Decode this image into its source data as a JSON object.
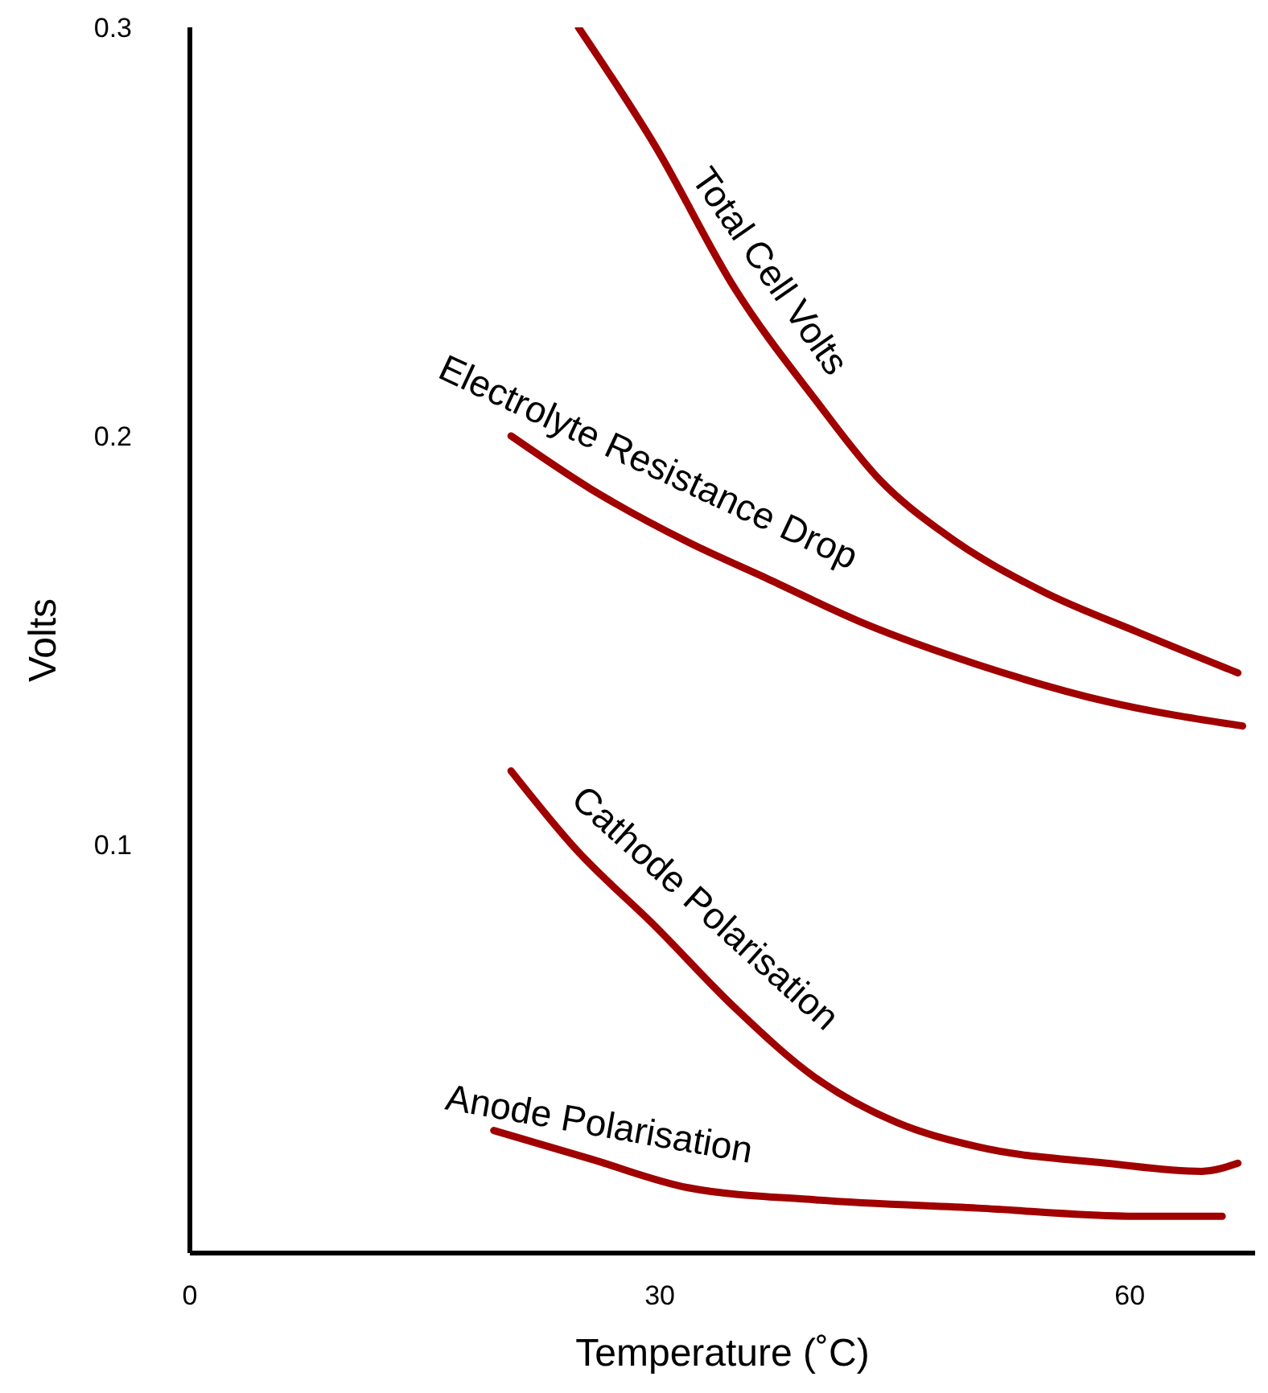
{
  "chart_data": {
    "type": "line",
    "xlabel": "Temperature  (˚C)",
    "ylabel": "Volts",
    "xlim": [
      0,
      68
    ],
    "xticks": [
      0,
      30,
      60
    ],
    "ylim": [
      0,
      0.3
    ],
    "yticks": [
      0.1,
      0.2,
      0.3
    ],
    "grid": false,
    "legend": false,
    "marker": "none",
    "line_style": "solid",
    "series": [
      {
        "name": "Total Cell Volts",
        "color": "#a00000",
        "x": [
          24.8,
          29.7,
          34.8,
          39.9,
          44.1,
          48.2,
          54.4,
          60.5,
          66.9
        ],
        "values": [
          0.3,
          0.271,
          0.236,
          0.209,
          0.189,
          0.176,
          0.162,
          0.152,
          0.142
        ]
      },
      {
        "name": "Electrolyte Resistance Drop",
        "color": "#a00000",
        "x": [
          20.5,
          25.6,
          31.8,
          36.9,
          43.1,
          50.3,
          58.5,
          67.2
        ],
        "values": [
          0.2,
          0.187,
          0.174,
          0.165,
          0.154,
          0.144,
          0.135,
          0.129
        ]
      },
      {
        "name": "Cathode Polarisation",
        "color": "#a00000",
        "x": [
          20.5,
          24.6,
          29.7,
          34.8,
          39.9,
          45.1,
          50.3,
          58.5,
          64.6,
          66.9
        ],
        "values": [
          0.118,
          0.099,
          0.08,
          0.06,
          0.043,
          0.032,
          0.026,
          0.022,
          0.02,
          0.022
        ]
      },
      {
        "name": "Anode Polarisation",
        "color": "#a00000",
        "x": [
          19.4,
          25.6,
          31.8,
          40,
          50.3,
          60.5,
          65.9
        ],
        "values": [
          0.03,
          0.023,
          0.016,
          0.013,
          0.011,
          0.009,
          0.009
        ]
      }
    ]
  }
}
